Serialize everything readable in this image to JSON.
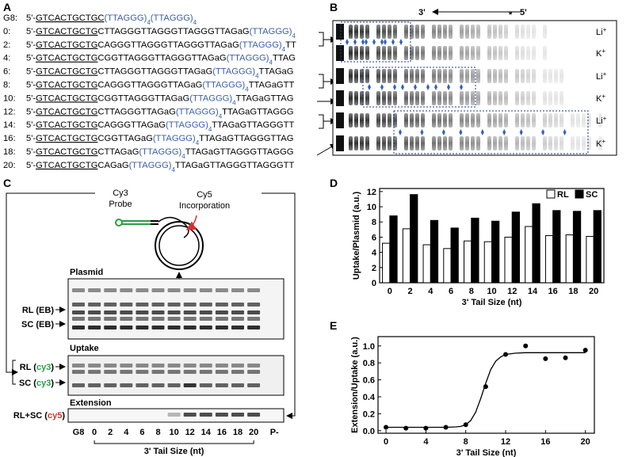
{
  "panel_labels": [
    "A",
    "B",
    "C",
    "D",
    "E"
  ],
  "sequences": [
    {
      "label": "G8:",
      "parts": [
        {
          "text": "5'-"
        },
        {
          "text": "GTCACTGCTGC",
          "style": "underline"
        },
        {
          "text": "(TTAGGG)",
          "style": "blue",
          "sub": "4"
        },
        {
          "text": "(TTAGGG)",
          "style": "blue",
          "sub": "4"
        }
      ]
    },
    {
      "label": "0:",
      "parts": [
        {
          "text": "5'-"
        },
        {
          "text": "GTCACTGCTG",
          "style": "underline"
        },
        {
          "text": "CTTAGGGTTAGGGTTAGGGTTAGaG"
        },
        {
          "text": "(TTAGGG)",
          "style": "blue",
          "sub": "4"
        }
      ]
    },
    {
      "label": "2:",
      "parts": [
        {
          "text": "5'-"
        },
        {
          "text": "GTCACTGCTG",
          "style": "underline"
        },
        {
          "text": "CAGGGTTAGGGTTAGGGTTAGaG"
        },
        {
          "text": "(TTAGGG)",
          "style": "blue",
          "sub": "4"
        },
        {
          "text": "TT"
        }
      ]
    },
    {
      "label": "4:",
      "parts": [
        {
          "text": "5'-"
        },
        {
          "text": "GTCACTGCTG",
          "style": "underline"
        },
        {
          "text": "CGGTTAGGGTTAGGGTTAGaG"
        },
        {
          "text": "(TTAGGG)",
          "style": "blue",
          "sub": "4"
        },
        {
          "text": "TTAG"
        }
      ]
    },
    {
      "label": "6:",
      "parts": [
        {
          "text": "5'-"
        },
        {
          "text": "GTCACTGCTG",
          "style": "underline"
        },
        {
          "text": "CTTAGGGTTAGGGTTAGaG"
        },
        {
          "text": "(TTAGGG)",
          "style": "blue",
          "sub": "4"
        },
        {
          "text": "TTAGaG"
        }
      ]
    },
    {
      "label": "8:",
      "parts": [
        {
          "text": "5'-"
        },
        {
          "text": "GTCACTGCTG",
          "style": "underline"
        },
        {
          "text": "CAGGGTTAGGGTTAGaG"
        },
        {
          "text": "(TTAGGG)",
          "style": "blue",
          "sub": "4"
        },
        {
          "text": "TTAGaGTT"
        }
      ]
    },
    {
      "label": "10:",
      "parts": [
        {
          "text": "5'-"
        },
        {
          "text": "GTCACTGCTG",
          "style": "underline"
        },
        {
          "text": "CGGTTAGGGTTAGaG"
        },
        {
          "text": "(TTAGGG)",
          "style": "blue",
          "sub": "4"
        },
        {
          "text": "TTAGaGTTAG"
        }
      ]
    },
    {
      "label": "12:",
      "parts": [
        {
          "text": "5'-"
        },
        {
          "text": "GTCACTGCTG",
          "style": "underline"
        },
        {
          "text": "CTTAGGGTTAGaG"
        },
        {
          "text": "(TTAGGG)",
          "style": "blue",
          "sub": "4"
        },
        {
          "text": "TTAGaGTTAGGG"
        }
      ]
    },
    {
      "label": "14:",
      "parts": [
        {
          "text": "5'-"
        },
        {
          "text": "GTCACTGCTG",
          "style": "underline"
        },
        {
          "text": "CAGGGTTAGaG"
        },
        {
          "text": "(TTAGGG)",
          "style": "blue",
          "sub": "4"
        },
        {
          "text": "TTAGaGTTAGGGTT"
        }
      ]
    },
    {
      "label": "16:",
      "parts": [
        {
          "text": "5'-"
        },
        {
          "text": "GTCACTGCTG",
          "style": "underline"
        },
        {
          "text": "CGGTTAGaG"
        },
        {
          "text": "(TTAGGG)",
          "style": "blue",
          "sub": "4"
        },
        {
          "text": "TTAGaGTTAGGGTTAG"
        }
      ]
    },
    {
      "label": "18:",
      "parts": [
        {
          "text": "5'-"
        },
        {
          "text": "GTCACTGCTG",
          "style": "underline"
        },
        {
          "text": "CTTAGaG"
        },
        {
          "text": "(TTAGGG)",
          "style": "blue",
          "sub": "4"
        },
        {
          "text": "TTAGaGTTAGGGTTAGGG"
        }
      ]
    },
    {
      "label": "20:",
      "parts": [
        {
          "text": "5'-"
        },
        {
          "text": "GTCACTGCTG",
          "style": "underline"
        },
        {
          "text": "CAGaG"
        },
        {
          "text": "(TTAGGG)",
          "style": "blue",
          "sub": "4"
        },
        {
          "text": "TTAGaGTTAGGGTTAGGGTT"
        }
      ]
    }
  ],
  "gel_b": {
    "direction": [
      "3'",
      "5'"
    ],
    "marker": "*",
    "lanes": [
      {
        "ion": "Li",
        "charge": "+"
      },
      {
        "ion": "K",
        "charge": "+"
      },
      {
        "ion": "Li",
        "charge": "+"
      },
      {
        "ion": "K",
        "charge": "+"
      },
      {
        "ion": "Li",
        "charge": "+"
      },
      {
        "ion": "K",
        "charge": "+"
      }
    ]
  },
  "panel_c": {
    "probe": [
      "Cy3",
      "Probe"
    ],
    "incorporation": [
      "Cy5",
      "Incorporation"
    ],
    "plasmid_title": "Plasmid",
    "plasmid_bands": [
      "RL (EB)",
      "SC (EB)"
    ],
    "uptake_title": "Uptake",
    "uptake_bands": [
      [
        {
          "text": "RL ("
        },
        {
          "text": "cy3",
          "color": "#2a9d48"
        },
        {
          "text": ")"
        }
      ],
      [
        {
          "text": "SC ("
        },
        {
          "text": "cy3",
          "color": "#2a9d48"
        },
        {
          "text": ")"
        }
      ]
    ],
    "extension_title": "Extension",
    "extension_band": [
      {
        "text": "RL+SC ("
      },
      {
        "text": "cy5",
        "color": "#d93030"
      },
      {
        "text": ")"
      }
    ],
    "lanes": [
      "G8",
      "0",
      "2",
      "4",
      "6",
      "8",
      "10",
      "12",
      "14",
      "16",
      "18",
      "20",
      "P-"
    ],
    "axis_label": "3' Tail Size (nt)"
  },
  "chart_data": [
    {
      "type": "bar",
      "categories": [
        "0",
        "2",
        "4",
        "6",
        "8",
        "10",
        "12",
        "14",
        "16",
        "18",
        "20"
      ],
      "series": [
        {
          "name": "RL",
          "color": "#ffffff",
          "values": [
            5.2,
            7.1,
            5.0,
            4.5,
            5.5,
            5.4,
            6.0,
            7.4,
            6.2,
            6.3,
            6.1
          ]
        },
        {
          "name": "SC",
          "color": "#000000",
          "values": [
            8.8,
            11.6,
            8.2,
            7.2,
            8.5,
            8.1,
            9.3,
            10.4,
            9.5,
            9.4,
            9.5
          ]
        }
      ],
      "ylim": [
        0,
        12.4
      ],
      "yticks": [
        0,
        2,
        4,
        6,
        8,
        10,
        12
      ],
      "ylabel": "Uptake/Plasmid (a.u.)",
      "xlabel": "3' Tail Size (nt)",
      "legend": "upper right"
    },
    {
      "type": "scatter",
      "x": [
        0,
        2,
        4,
        6,
        8,
        10,
        12,
        14,
        16,
        18,
        20
      ],
      "values": [
        0.04,
        0.03,
        0.03,
        0.04,
        0.07,
        0.52,
        0.9,
        1.0,
        0.85,
        0.86,
        0.95
      ],
      "color": "#000000",
      "fit": {
        "x": [
          0,
          2,
          4,
          6,
          7,
          7.5,
          8,
          8.5,
          9,
          9.5,
          10,
          10.5,
          11,
          11.5,
          12,
          13,
          14,
          16,
          18,
          20
        ],
        "values": [
          0.04,
          0.04,
          0.04,
          0.04,
          0.045,
          0.05,
          0.07,
          0.12,
          0.22,
          0.38,
          0.56,
          0.72,
          0.82,
          0.87,
          0.9,
          0.915,
          0.92,
          0.92,
          0.92,
          0.92
        ]
      },
      "xlim": [
        -0.8,
        20.9
      ],
      "ylim": [
        -0.03,
        1.11
      ],
      "xticks": [
        0,
        4,
        8,
        12,
        16,
        20
      ],
      "yticks": [
        {
          "value": 0,
          "label": "0.0"
        },
        0.2,
        0.4,
        0.6,
        0.8,
        {
          "value": 1,
          "label": "1.0"
        }
      ],
      "ylabel": "Extension/Uptake (a.u.)",
      "xlabel": "3' Tail Size (nt)"
    }
  ]
}
